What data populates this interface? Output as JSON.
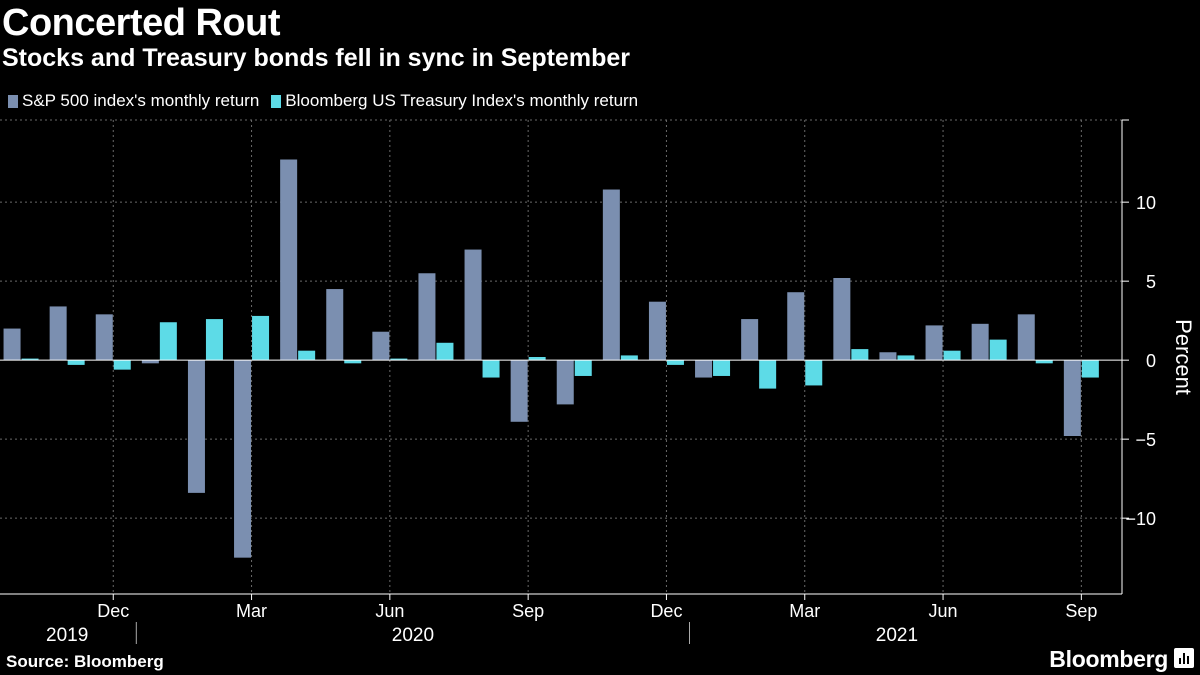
{
  "chart_data": {
    "type": "bar",
    "title": "Concerted Rout",
    "subtitle": "Stocks and Treasury bonds fell in sync in September",
    "ylabel": "Percent",
    "ylim": [
      -14.8,
      15.2
    ],
    "yticks": [
      10,
      5,
      0,
      -5,
      -10
    ],
    "grid": true,
    "legend_position": "top-left",
    "months": [
      "2019-10",
      "2019-11",
      "2019-12",
      "2020-01",
      "2020-02",
      "2020-03",
      "2020-04",
      "2020-05",
      "2020-06",
      "2020-07",
      "2020-08",
      "2020-09",
      "2020-10",
      "2020-11",
      "2020-12",
      "2021-01",
      "2021-02",
      "2021-03",
      "2021-04",
      "2021-05",
      "2021-06",
      "2021-07",
      "2021-08",
      "2021-09"
    ],
    "month_ticks": [
      {
        "index": 2,
        "label": "Dec"
      },
      {
        "index": 5,
        "label": "Mar"
      },
      {
        "index": 8,
        "label": "Jun"
      },
      {
        "index": 11,
        "label": "Sep"
      },
      {
        "index": 14,
        "label": "Dec"
      },
      {
        "index": 17,
        "label": "Mar"
      },
      {
        "index": 20,
        "label": "Jun"
      },
      {
        "index": 23,
        "label": "Sep"
      }
    ],
    "year_labels": [
      {
        "label": "2019",
        "start": 0,
        "end": 2
      },
      {
        "label": "2020",
        "start": 3,
        "end": 14
      },
      {
        "label": "2021",
        "start": 15,
        "end": 23
      }
    ],
    "series": [
      {
        "name": "S&P 500 index's monthly return",
        "color": "#7b8fb0",
        "values": [
          2.0,
          3.4,
          2.9,
          -0.2,
          -8.4,
          -12.5,
          12.7,
          4.5,
          1.8,
          5.5,
          7.0,
          -3.9,
          -2.8,
          10.8,
          3.7,
          -1.1,
          2.6,
          4.3,
          5.2,
          0.5,
          2.2,
          2.3,
          2.9,
          -4.8
        ]
      },
      {
        "name": "Bloomberg US Treasury Index's monthly return",
        "color": "#5ddbe7",
        "values": [
          0.1,
          -0.3,
          -0.6,
          2.4,
          2.6,
          2.8,
          0.6,
          -0.2,
          0.1,
          1.1,
          -1.1,
          0.2,
          -1.0,
          0.3,
          -0.3,
          -1.0,
          -1.8,
          -1.6,
          0.7,
          0.3,
          0.6,
          1.3,
          -0.2,
          -1.1
        ]
      }
    ]
  },
  "footer": {
    "source": "Source: Bloomberg",
    "brand": "Bloomberg"
  }
}
